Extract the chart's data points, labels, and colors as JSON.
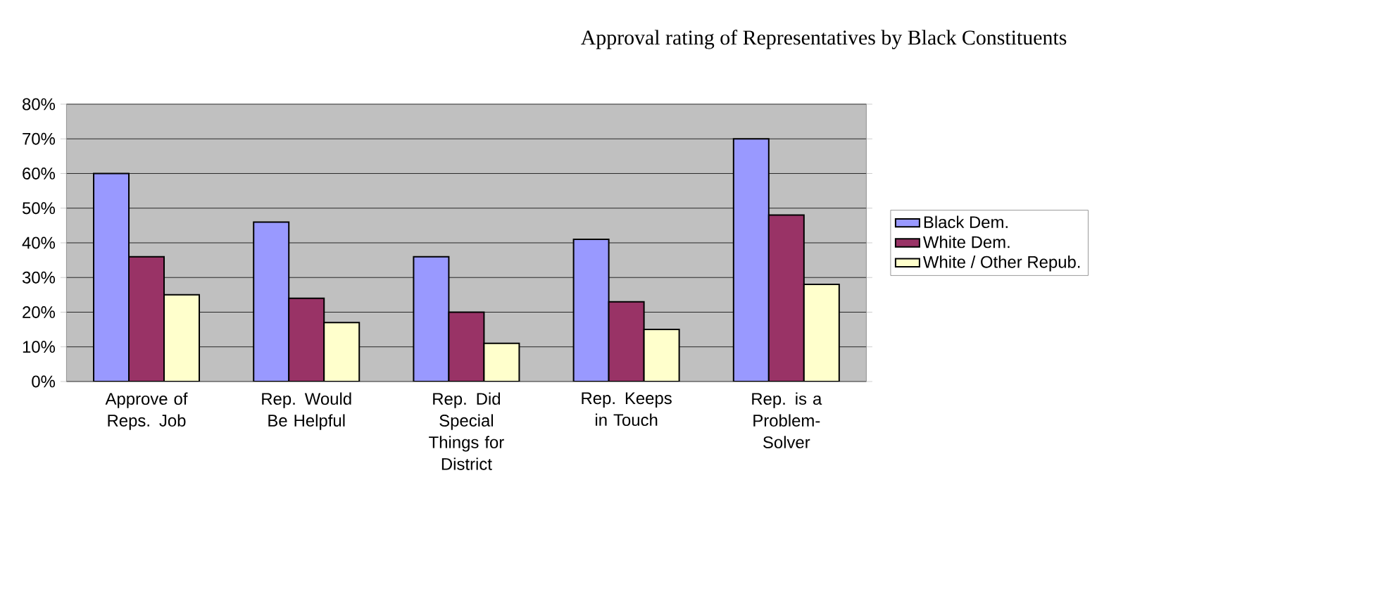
{
  "chart_data": {
    "type": "bar",
    "title": "Approval rating of Representatives by Black Constituents",
    "categories": [
      "Approve of Reps. Job",
      "Rep. Would Be Helpful",
      "Rep. Did Special Things for District",
      "Rep. Keeps in Touch",
      "Rep. is a Problem-Solver"
    ],
    "series": [
      {
        "name": "Black Dem.",
        "color": "#9999ff",
        "values": [
          60,
          46,
          36,
          41,
          70
        ]
      },
      {
        "name": "White Dem.",
        "color": "#993366",
        "values": [
          36,
          24,
          20,
          23,
          48
        ]
      },
      {
        "name": "White / Other Repub.",
        "color": "#ffffcc",
        "values": [
          25,
          17,
          11,
          15,
          28
        ]
      }
    ],
    "ylim": [
      0,
      80
    ],
    "yticks": [
      {
        "value": 0,
        "label": "0%"
      },
      {
        "value": 10,
        "label": "10%"
      },
      {
        "value": 20,
        "label": "20%"
      },
      {
        "value": 30,
        "label": "30%"
      },
      {
        "value": 40,
        "label": "40%"
      },
      {
        "value": 50,
        "label": "50%"
      },
      {
        "value": 60,
        "label": "60%"
      },
      {
        "value": 70,
        "label": "70%"
      },
      {
        "value": 80,
        "label": "80%"
      }
    ],
    "grid": "y",
    "legend": "right"
  }
}
